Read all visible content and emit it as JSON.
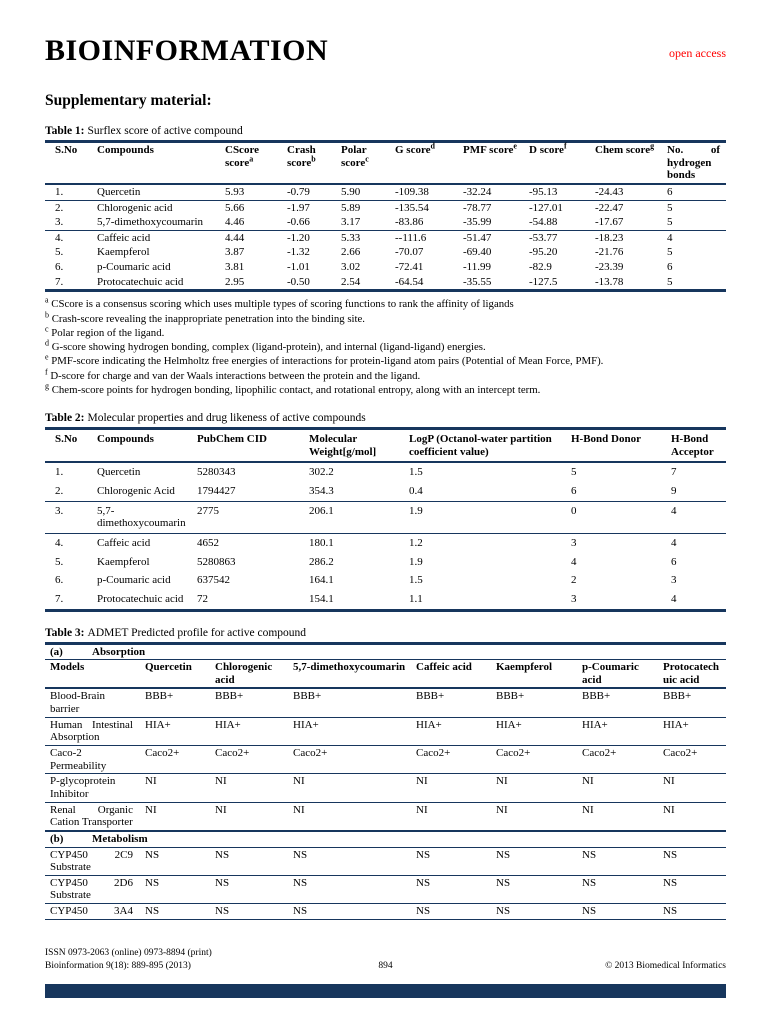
{
  "colors": {
    "accent_navy": "#17365D",
    "open_access_red": "#FF0000"
  },
  "page": {
    "title": "BIOINFORMATION",
    "open_access": "open access",
    "section_heading": "Supplementary material:"
  },
  "table1": {
    "caption_label": "Table 1:",
    "caption_text": "Surflex score of active compound",
    "headers": [
      {
        "label": "S.No"
      },
      {
        "label": "Compounds"
      },
      {
        "label": "CScore score",
        "sup": "a"
      },
      {
        "label": "Crash score",
        "sup": "b"
      },
      {
        "label": "Polar score",
        "sup": "c"
      },
      {
        "label": "G score",
        "sup": "d"
      },
      {
        "label": "PMF score",
        "sup": "e"
      },
      {
        "label": "D score",
        "sup": "f"
      },
      {
        "label": "Chem score",
        "sup": "g"
      },
      {
        "label": "No. of hydrogen bonds"
      }
    ],
    "rows": [
      [
        "1.",
        "Quercetin",
        "5.93",
        "-0.79",
        "5.90",
        "-109.38",
        "-32.24",
        "-95.13",
        "-24.43",
        "6"
      ],
      [
        "2.",
        "Chlorogenic acid",
        "5.66",
        "-1.97",
        "5.89",
        "-135.54",
        "-78.77",
        "-127.01",
        "-22.47",
        "5"
      ],
      [
        "3.",
        "5,7-dimethoxycoumarin",
        "4.46",
        "-0.66",
        "3.17",
        "-83.86",
        "-35.99",
        "-54.88",
        "-17.67",
        "5"
      ],
      [
        "4.",
        "Caffeic acid",
        "4.44",
        "-1.20",
        "5.33",
        "--111.6",
        "-51.47",
        "-53.77",
        "-18.23",
        "4"
      ],
      [
        "5.",
        "Kaempferol",
        "3.87",
        "-1.32",
        "2.66",
        "-70.07",
        "-69.40",
        "-95.20",
        "-21.76",
        "5"
      ],
      [
        "6.",
        "p-Coumaric acid",
        "3.81",
        "-1.01",
        "3.02",
        "-72.41",
        "-11.99",
        "-82.9",
        "-23.39",
        "6"
      ],
      [
        "7.",
        "Protocatechuic acid",
        "2.95",
        "-0.50",
        "2.54",
        "-64.54",
        "-35.55",
        "-127.5",
        "-13.78",
        "5"
      ]
    ],
    "footnotes": [
      {
        "sup": "a",
        "text": "CScore is a consensus scoring which uses multiple types of scoring functions to rank the affinity of ligands"
      },
      {
        "sup": "b",
        "text": "Crash-score revealing the inappropriate penetration into the binding site."
      },
      {
        "sup": "c",
        "text": "Polar region of the ligand."
      },
      {
        "sup": "d",
        "text": "G-score showing hydrogen bonding, complex (ligand-protein), and internal (ligand-ligand) energies."
      },
      {
        "sup": "e",
        "text": "PMF-score indicating the Helmholtz free energies of interactions for protein-ligand atom pairs (Potential of Mean Force, PMF)."
      },
      {
        "sup": "f",
        "text": "D-score for charge and van der Waals interactions between the protein and the ligand."
      },
      {
        "sup": "g",
        "text": "Chem-score points for hydrogen bonding, lipophilic contact, and rotational entropy, along with an intercept term."
      }
    ]
  },
  "table2": {
    "caption_label": "Table 2:",
    "caption_text": "Molecular properties and drug likeness of active compounds",
    "headers": [
      {
        "label": "S.No"
      },
      {
        "label": "Compounds"
      },
      {
        "label": "PubChem CID"
      },
      {
        "label": "Molecular Weight[g/mol]"
      },
      {
        "label": "LogP (Octanol-water partition coefficient value)"
      },
      {
        "label": "H-Bond Donor"
      },
      {
        "label": "H-Bond Acceptor"
      }
    ],
    "rows": [
      [
        "1.",
        "Quercetin",
        "5280343",
        "302.2",
        "1.5",
        "5",
        "7"
      ],
      [
        "2.",
        "Chlorogenic Acid",
        "1794427",
        "354.3",
        "0.4",
        "6",
        "9"
      ],
      [
        "3.",
        "5,7-dimethoxycoumarin",
        "2775",
        "206.1",
        "1.9",
        "0",
        "4"
      ],
      [
        "4.",
        "Caffeic acid",
        "4652",
        "180.1",
        "1.2",
        "3",
        "4"
      ],
      [
        "5.",
        "Kaempferol",
        "5280863",
        "286.2",
        "1.9",
        "4",
        "6"
      ],
      [
        "6.",
        "p-Coumaric acid",
        "637542",
        "164.1",
        "1.5",
        "2",
        "3"
      ],
      [
        "7.",
        "Protocatechuic acid",
        "72",
        "154.1",
        "1.1",
        "3",
        "4"
      ]
    ]
  },
  "table3": {
    "caption_label": "Table 3:",
    "caption_text": "ADMET Predicted profile for active compound",
    "section_a": {
      "label": "(a)",
      "title": "Absorption"
    },
    "headers": [
      {
        "label": "Models"
      },
      {
        "label": "Quercetin"
      },
      {
        "label": "Chlorogenic acid"
      },
      {
        "label": "5,7-dimethoxycoumarin"
      },
      {
        "label": "Caffeic acid"
      },
      {
        "label": "Kaempferol"
      },
      {
        "label": "p-Coumaric acid"
      },
      {
        "label": "Protocatechuic acid"
      }
    ],
    "rows": [
      [
        "Blood-Brain barrier",
        "BBB+",
        "BBB+",
        "BBB+",
        "BBB+",
        "BBB+",
        "BBB+",
        "BBB+"
      ],
      [
        "Human Intestinal Absorption",
        "HIA+",
        "HIA+",
        "HIA+",
        "HIA+",
        "HIA+",
        "HIA+",
        "HIA+"
      ],
      [
        "Caco-2 Permeability",
        "Caco2+",
        "Caco2+",
        "Caco2+",
        "Caco2+",
        "Caco2+",
        "Caco2+",
        "Caco2+"
      ],
      [
        "P-glycoprotein Inhibitor",
        "NI",
        "NI",
        "NI",
        "NI",
        "NI",
        "NI",
        "NI"
      ],
      [
        "Renal Organic Cation Transporter",
        "NI",
        "NI",
        "NI",
        "NI",
        "NI",
        "NI",
        "NI"
      ]
    ],
    "section_b": {
      "label": "(b)",
      "title": "Metabolism"
    },
    "metabolism_rows": [
      [
        "CYP450 2C9 Substrate",
        "NS",
        "NS",
        "NS",
        "NS",
        "NS",
        "NS",
        "NS"
      ],
      [
        "CYP450 2D6 Substrate",
        "NS",
        "NS",
        "NS",
        "NS",
        "NS",
        "NS",
        "NS"
      ],
      [
        "CYP450 3A4",
        "NS",
        "NS",
        "NS",
        "NS",
        "NS",
        "NS",
        "NS"
      ]
    ]
  },
  "footer": {
    "issn": "ISSN 0973-2063 (online) 0973-8894 (print)",
    "journal": "Bioinformation 9(18): 889-895 (2013)",
    "page_number": "894",
    "copyright": "© 2013 Biomedical Informatics"
  }
}
